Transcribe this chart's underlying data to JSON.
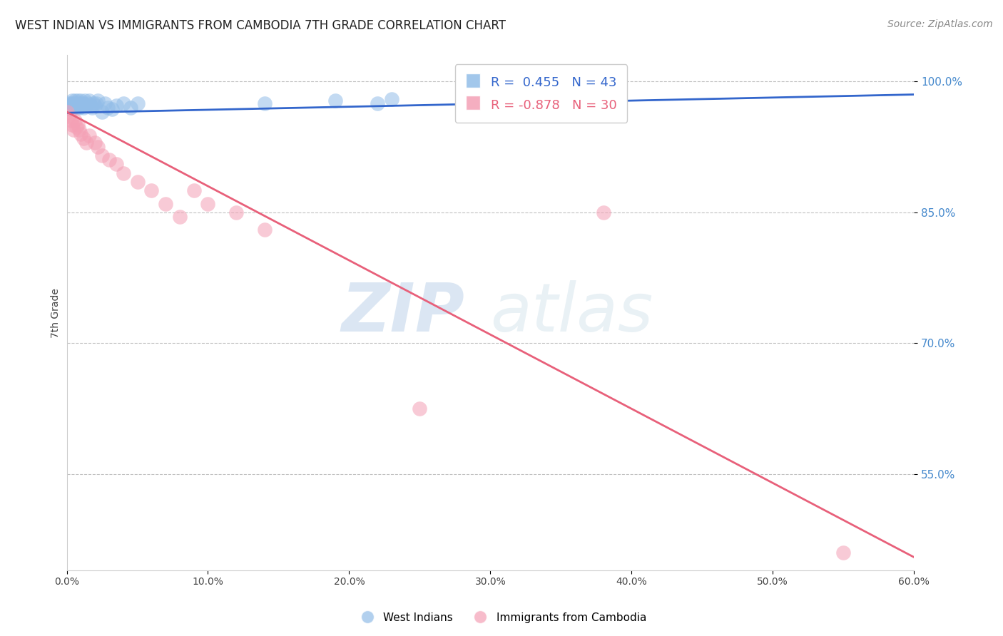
{
  "title": "WEST INDIAN VS IMMIGRANTS FROM CAMBODIA 7TH GRADE CORRELATION CHART",
  "source": "Source: ZipAtlas.com",
  "ylabel": "7th Grade",
  "ytick_labels": [
    "100.0%",
    "85.0%",
    "70.0%",
    "55.0%"
  ],
  "ytick_values": [
    100.0,
    85.0,
    70.0,
    55.0
  ],
  "legend_blue_r": "R =  0.455",
  "legend_blue_n": "N = 43",
  "legend_pink_r": "R = -0.878",
  "legend_pink_n": "N = 30",
  "blue_color": "#92bde8",
  "pink_color": "#f4a0b5",
  "blue_line_color": "#3366cc",
  "pink_line_color": "#e8607a",
  "watermark_zip": "ZIP",
  "watermark_atlas": "atlas",
  "blue_scatter_x": [
    0.0,
    0.1,
    0.2,
    0.3,
    0.3,
    0.4,
    0.5,
    0.5,
    0.6,
    0.6,
    0.7,
    0.7,
    0.8,
    0.9,
    0.9,
    1.0,
    1.0,
    1.1,
    1.2,
    1.2,
    1.3,
    1.4,
    1.5,
    1.6,
    1.7,
    1.8,
    1.9,
    2.0,
    2.1,
    2.2,
    2.5,
    2.7,
    2.9,
    3.2,
    3.5,
    4.0,
    4.5,
    5.0,
    14.0,
    19.0,
    22.0,
    23.0,
    30.0
  ],
  "blue_scatter_y": [
    97.0,
    97.5,
    97.2,
    96.8,
    97.5,
    97.8,
    97.0,
    97.5,
    97.2,
    97.8,
    97.5,
    97.0,
    97.8,
    97.3,
    97.0,
    97.5,
    97.8,
    97.2,
    97.5,
    97.0,
    97.8,
    97.2,
    97.5,
    97.8,
    97.2,
    97.0,
    97.5,
    97.2,
    97.5,
    97.8,
    96.5,
    97.5,
    97.0,
    96.8,
    97.2,
    97.5,
    97.0,
    97.5,
    97.5,
    97.8,
    97.5,
    98.0,
    97.5
  ],
  "pink_scatter_x": [
    0.0,
    0.1,
    0.3,
    0.4,
    0.5,
    0.6,
    0.7,
    0.8,
    0.9,
    1.0,
    1.2,
    1.4,
    1.6,
    2.0,
    2.2,
    2.5,
    3.0,
    3.5,
    4.0,
    5.0,
    6.0,
    7.0,
    8.0,
    9.0,
    10.0,
    12.0,
    14.0,
    25.0,
    38.0,
    55.0
  ],
  "pink_scatter_y": [
    96.5,
    96.0,
    95.5,
    95.0,
    94.5,
    95.5,
    94.8,
    95.0,
    94.5,
    94.0,
    93.5,
    93.0,
    93.8,
    93.0,
    92.5,
    91.5,
    91.0,
    90.5,
    89.5,
    88.5,
    87.5,
    86.0,
    84.5,
    87.5,
    86.0,
    85.0,
    83.0,
    62.5,
    85.0,
    46.0
  ],
  "blue_line_x": [
    0.0,
    60.0
  ],
  "blue_line_y": [
    96.4,
    98.5
  ],
  "pink_line_x": [
    0.0,
    60.0
  ],
  "pink_line_y": [
    96.5,
    45.5
  ],
  "xlim": [
    0.0,
    60.0
  ],
  "ylim": [
    44.0,
    103.0
  ],
  "xticks": [
    0.0,
    10.0,
    20.0,
    30.0,
    40.0,
    50.0,
    60.0
  ],
  "xticklabels": [
    "0.0%",
    "10.0%",
    "20.0%",
    "30.0%",
    "40.0%",
    "50.0%",
    "60.0%"
  ],
  "title_fontsize": 12,
  "source_fontsize": 10,
  "ylabel_fontsize": 10,
  "tick_fontsize": 10,
  "legend_fontsize": 13
}
